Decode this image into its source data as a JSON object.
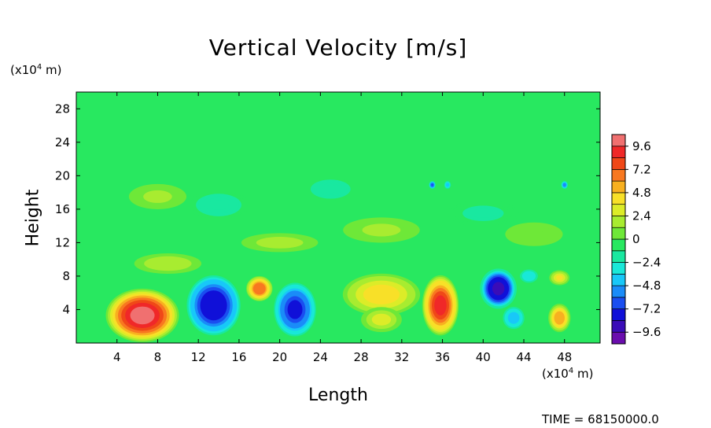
{
  "chart_data": {
    "type": "heatmap",
    "title": "Vertical Velocity [m/s]",
    "xlabel": "Length",
    "ylabel": "Height",
    "x_unit": {
      "prefix": "(x10",
      "exp": "4",
      "suffix": " m)"
    },
    "y_unit": {
      "prefix": "(x10",
      "exp": "4",
      "suffix": " m)"
    },
    "x_ticks": [
      4,
      8,
      12,
      16,
      20,
      24,
      28,
      32,
      36,
      40,
      44,
      48
    ],
    "y_ticks": [
      4,
      8,
      12,
      16,
      20,
      24,
      28
    ],
    "xlim": [
      0,
      51.5
    ],
    "ylim": [
      0,
      30
    ],
    "colorbar": {
      "tick_labels": [
        "9.6",
        "7.2",
        "4.8",
        "2.4",
        "0",
        "−2.4",
        "−4.8",
        "−7.2",
        "−9.6"
      ],
      "tick_values": [
        9.6,
        7.2,
        4.8,
        2.4,
        0,
        -2.4,
        -4.8,
        -7.2,
        -9.6
      ],
      "range": [
        -10.8,
        10.8
      ],
      "levels": 18,
      "colors": [
        "#6a0dad",
        "#3a0cb8",
        "#1010d8",
        "#1a4ef0",
        "#1a8cf8",
        "#18c8f8",
        "#19e8d8",
        "#19e8a0",
        "#28e860",
        "#6ee838",
        "#a8ec30",
        "#dcec28",
        "#f8e028",
        "#f8b020",
        "#f87820",
        "#f04818",
        "#f02828",
        "#f07070"
      ]
    },
    "background_value": -0.3,
    "features": [
      {
        "x": 6.5,
        "y": 3.3,
        "value": 10.0,
        "rx": 3.6,
        "ry": 3.2
      },
      {
        "x": 13.5,
        "y": 4.5,
        "value": -8.2,
        "rx": 2.8,
        "ry": 3.8
      },
      {
        "x": 18.0,
        "y": 6.5,
        "value": 7.0,
        "rx": 1.3,
        "ry": 1.5
      },
      {
        "x": 21.5,
        "y": 4.0,
        "value": -7.6,
        "rx": 2.2,
        "ry": 3.4
      },
      {
        "x": 30.0,
        "y": 5.8,
        "value": 4.5,
        "rx": 3.8,
        "ry": 2.5
      },
      {
        "x": 30.0,
        "y": 2.8,
        "value": 3.0,
        "rx": 2.0,
        "ry": 1.5
      },
      {
        "x": 35.8,
        "y": 4.5,
        "value": 8.6,
        "rx": 1.8,
        "ry": 3.6
      },
      {
        "x": 41.5,
        "y": 6.5,
        "value": -9.3,
        "rx": 1.8,
        "ry": 2.4
      },
      {
        "x": 43.0,
        "y": 3.0,
        "value": -4.2,
        "rx": 1.2,
        "ry": 1.5
      },
      {
        "x": 44.5,
        "y": 8.0,
        "value": -3.6,
        "rx": 1.0,
        "ry": 0.9
      },
      {
        "x": 47.5,
        "y": 3.0,
        "value": 5.6,
        "rx": 1.1,
        "ry": 1.7
      },
      {
        "x": 47.5,
        "y": 7.8,
        "value": 3.6,
        "rx": 1.0,
        "ry": 0.9
      },
      {
        "x": 35.0,
        "y": 18.9,
        "value": -6.6,
        "rx": 0.35,
        "ry": 0.5
      },
      {
        "x": 36.5,
        "y": 18.9,
        "value": -4.4,
        "rx": 0.35,
        "ry": 0.5
      },
      {
        "x": 48.0,
        "y": 18.9,
        "value": -5.6,
        "rx": 0.35,
        "ry": 0.5
      },
      {
        "x": 25.0,
        "y": 18.4,
        "value": -2.4,
        "rx": 2.4,
        "ry": 1.4
      },
      {
        "x": 14.0,
        "y": 16.5,
        "value": -2.0,
        "rx": 3.0,
        "ry": 1.8
      },
      {
        "x": 40.0,
        "y": 15.5,
        "value": -1.6,
        "rx": 3.5,
        "ry": 1.6
      },
      {
        "x": 8.0,
        "y": 17.5,
        "value": 1.4,
        "rx": 3.0,
        "ry": 1.6
      },
      {
        "x": 30.0,
        "y": 13.5,
        "value": 1.4,
        "rx": 4.0,
        "ry": 1.6
      },
      {
        "x": 20.0,
        "y": 12.0,
        "value": 1.8,
        "rx": 4.0,
        "ry": 1.2
      },
      {
        "x": 9.0,
        "y": 9.5,
        "value": 2.0,
        "rx": 3.5,
        "ry": 1.3
      },
      {
        "x": 45.0,
        "y": 13.0,
        "value": 1.2,
        "rx": 3.0,
        "ry": 1.5
      }
    ]
  },
  "footer": {
    "time_label": "TIME",
    "time_separator": "=",
    "time_value": "68150000.0"
  }
}
